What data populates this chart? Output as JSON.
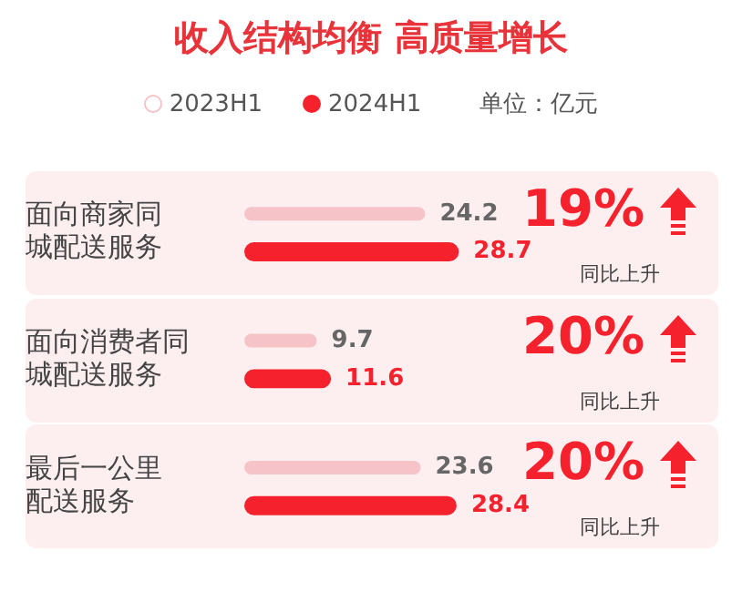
{
  "chart_data": {
    "type": "bar",
    "orientation": "horizontal",
    "title": "收入结构均衡 高质量增长",
    "categories": [
      "面向商家同城配送服务",
      "面向消费者同城配送服务",
      "最后一公里配送服务"
    ],
    "series": [
      {
        "name": "2023H1",
        "color": "#f6c3c8",
        "values": [
          24.2,
          9.7,
          23.6
        ]
      },
      {
        "name": "2024H1",
        "color": "#f5222d",
        "values": [
          28.7,
          11.6,
          28.4
        ]
      }
    ],
    "data_labels": true,
    "legend": "top",
    "tick_labels": "y",
    "grid": false,
    "annotations": [
      "单位：亿元",
      "19%",
      "同比上升",
      "20%",
      "同比上升",
      "20%",
      "同比上升"
    ]
  }
}
